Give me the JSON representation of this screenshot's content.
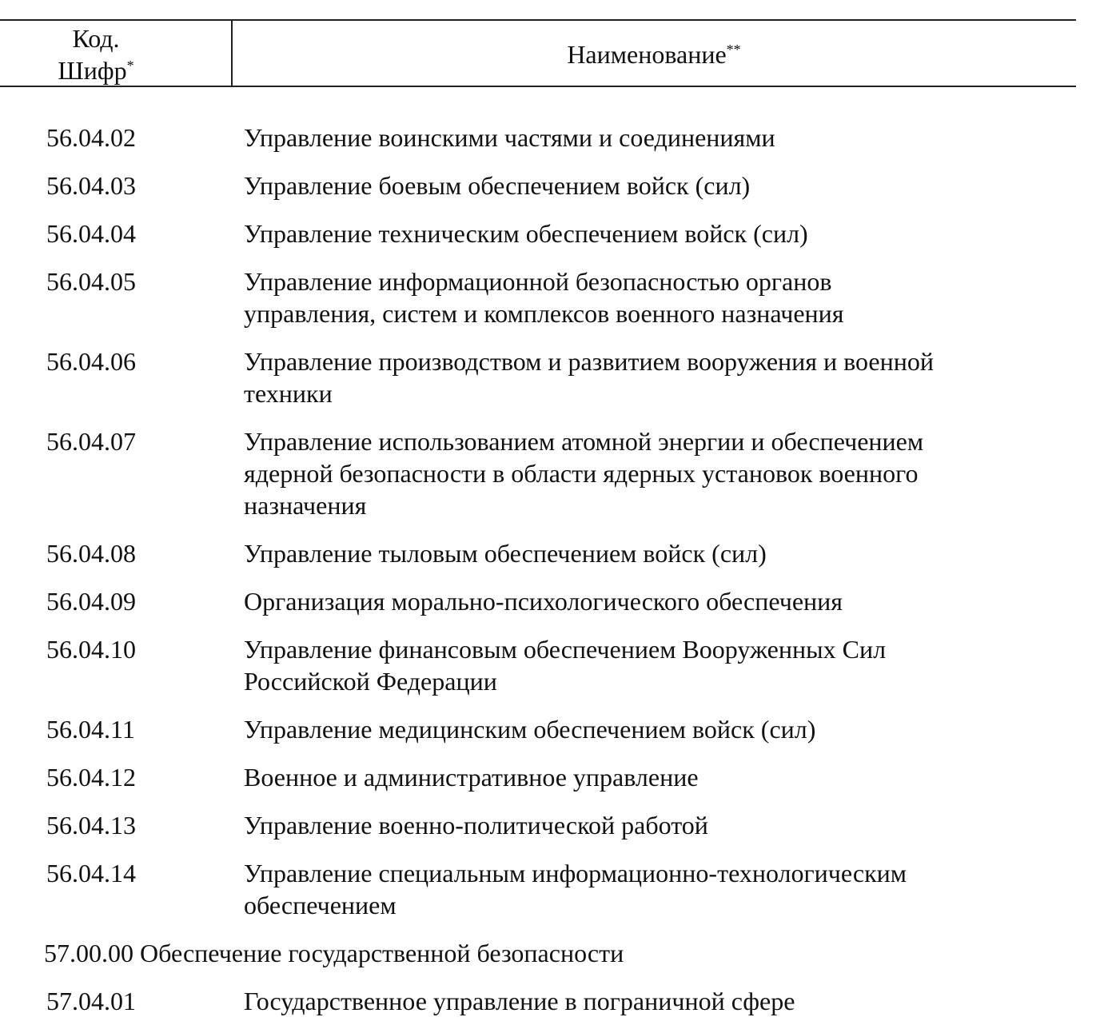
{
  "header": {
    "code_line1": "Код.",
    "code_line2": "Шифр",
    "code_mark": "*",
    "name": "Наименование",
    "name_mark": "**"
  },
  "rows": [
    {
      "code": "56.04.02",
      "lines": [
        "Управление воинскими частями и соединениями"
      ]
    },
    {
      "code": "56.04.03",
      "lines": [
        "Управление боевым обеспечением войск (сил)"
      ]
    },
    {
      "code": "56.04.04",
      "lines": [
        "Управление техническим обеспечением войск (сил)"
      ]
    },
    {
      "code": "56.04.05",
      "lines": [
        "Управление информационной безопасностью органов",
        "управления, систем и комплексов военного назначения"
      ]
    },
    {
      "code": "56.04.06",
      "lines": [
        "Управление производством и развитием вооружения и военной",
        "техники"
      ]
    },
    {
      "code": "56.04.07",
      "lines": [
        "Управление использованием атомной энергии и обеспечением",
        "ядерной безопасности в области ядерных установок военного",
        "назначения"
      ]
    },
    {
      "code": "56.04.08",
      "lines": [
        "Управление тыловым обеспечением войск (сил)"
      ]
    },
    {
      "code": "56.04.09",
      "lines": [
        "Организация морально-психологического обеспечения"
      ]
    },
    {
      "code": "56.04.10",
      "lines": [
        "Управление финансовым обеспечением Вооруженных Сил",
        "Российской Федерации"
      ]
    },
    {
      "code": "56.04.11",
      "lines": [
        "Управление медицинским обеспечением войск (сил)"
      ]
    },
    {
      "code": "56.04.12",
      "lines": [
        "Военное и административное управление"
      ]
    },
    {
      "code": "56.04.13",
      "lines": [
        "Управление военно-политической работой"
      ]
    },
    {
      "code": "56.04.14",
      "lines": [
        "Управление специальным информационно-технологическим",
        "обеспечением"
      ]
    }
  ],
  "section": {
    "code": "57.00.00",
    "name": "Обеспечение государственной безопасности"
  },
  "rows2": [
    {
      "code": "57.04.01",
      "lines": [
        "Государственное управление в пограничной сфере"
      ]
    }
  ]
}
